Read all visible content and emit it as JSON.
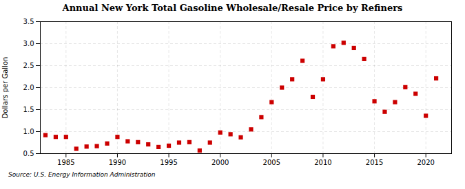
{
  "chart_data": {
    "type": "scatter",
    "title": "Annual New York Total Gasoline Wholesale/Resale Price by Refiners",
    "ylabel": "Dollars per Gallon",
    "source": "Source: U.S. Energy Information Administration",
    "x": [
      1983,
      1984,
      1985,
      1986,
      1987,
      1988,
      1989,
      1990,
      1991,
      1992,
      1993,
      1994,
      1995,
      1996,
      1997,
      1998,
      1999,
      2000,
      2001,
      2002,
      2003,
      2004,
      2005,
      2006,
      2007,
      2008,
      2009,
      2010,
      2011,
      2012,
      2013,
      2014,
      2015,
      2016,
      2017,
      2018,
      2019,
      2020,
      2021
    ],
    "values": [
      0.92,
      0.88,
      0.88,
      0.61,
      0.66,
      0.67,
      0.73,
      0.88,
      0.78,
      0.76,
      0.71,
      0.65,
      0.68,
      0.75,
      0.76,
      0.57,
      0.75,
      0.98,
      0.94,
      0.87,
      1.05,
      1.33,
      1.67,
      2.0,
      2.19,
      2.61,
      1.79,
      2.19,
      2.94,
      3.02,
      2.9,
      2.65,
      1.69,
      1.45,
      1.67,
      2.01,
      1.86,
      1.36,
      2.21
    ],
    "color": "#cc0000",
    "marker": "square",
    "xlim": [
      1982.5,
      2022.5
    ],
    "xticks": [
      1985,
      1990,
      1995,
      2000,
      2005,
      2010,
      2015,
      2020
    ],
    "ylim": [
      0.5,
      3.5
    ],
    "yticks": [
      0.5,
      {
        "value": 1.0,
        "label": "1.0"
      },
      1.5,
      {
        "value": 2.0,
        "label": "2.0"
      },
      2.5,
      {
        "value": 3.0,
        "label": "3.0"
      },
      3.5
    ],
    "grid": true
  }
}
